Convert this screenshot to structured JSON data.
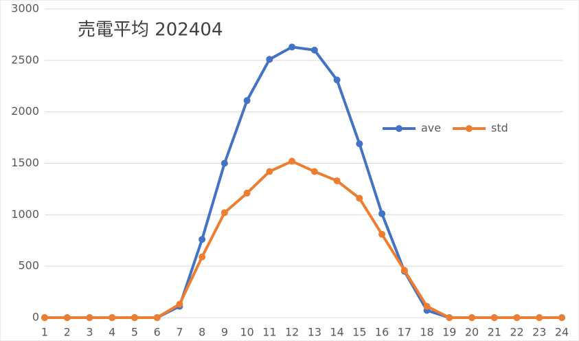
{
  "chart_data": {
    "type": "line",
    "title": "売電平均 202404",
    "categories": [
      "1",
      "2",
      "3",
      "4",
      "5",
      "6",
      "7",
      "8",
      "9",
      "10",
      "11",
      "12",
      "13",
      "14",
      "15",
      "16",
      "17",
      "18",
      "19",
      "20",
      "21",
      "22",
      "23",
      "24"
    ],
    "series": [
      {
        "name": "ave",
        "color": "#4472c4",
        "values": [
          0,
          0,
          0,
          0,
          0,
          0,
          110,
          760,
          1500,
          2110,
          2510,
          2630,
          2600,
          2310,
          1690,
          1010,
          450,
          70,
          0,
          0,
          0,
          0,
          0,
          0
        ]
      },
      {
        "name": "std",
        "color": "#ed7d31",
        "values": [
          0,
          0,
          0,
          0,
          0,
          0,
          130,
          590,
          1020,
          1210,
          1420,
          1520,
          1420,
          1330,
          1160,
          810,
          460,
          110,
          0,
          0,
          0,
          0,
          0,
          0
        ]
      }
    ],
    "ylim": [
      0,
      3000
    ],
    "yticks": [
      0,
      500,
      1000,
      1500,
      2000,
      2500,
      3000
    ],
    "grid": true,
    "legend": "right"
  }
}
